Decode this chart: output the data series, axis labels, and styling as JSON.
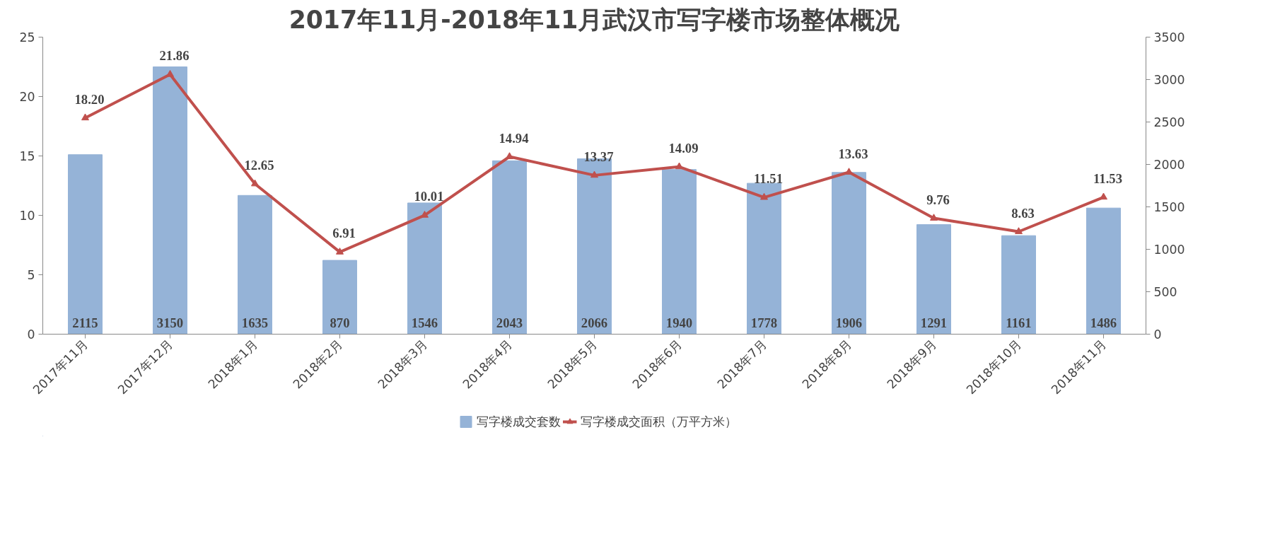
{
  "chart_data": {
    "type": "bar",
    "title": "2017年11月-2018年11月武汉市写字楼市场整体概况",
    "categories": [
      "2017年11月",
      "2017年12月",
      "2018年1月",
      "2018年2月",
      "2018年3月",
      "2018年4月",
      "2018年5月",
      "2018年6月",
      "2018年7月",
      "2018年8月",
      "2018年9月",
      "2018年10月",
      "2018年11月"
    ],
    "series": [
      {
        "name": "写字楼成交套数",
        "axis": "y2",
        "color": "#95b3d7",
        "values": [
          2115,
          3150,
          1635,
          870,
          1546,
          2043,
          2066,
          1940,
          1778,
          1906,
          1291,
          1161,
          1486
        ],
        "value_labels": [
          "2115",
          "3150",
          "1635",
          "870",
          "1546",
          "2043",
          "2066",
          "1940",
          "1778",
          "1906",
          "1291",
          "1161",
          "1486"
        ]
      },
      {
        "name": "写字楼成交面积（万平方米）",
        "type": "line",
        "axis": "y",
        "color": "#c0504d",
        "marker": "triangle",
        "values": [
          18.2,
          21.86,
          12.65,
          6.91,
          10.01,
          14.94,
          13.37,
          14.09,
          11.51,
          13.63,
          9.76,
          8.63,
          11.53
        ],
        "value_labels": [
          "18.20",
          "21.86",
          "12.65",
          "6.91",
          "10.01",
          "14.94",
          "13.37",
          "14.09",
          "11.51",
          "13.63",
          "9.76",
          "8.63",
          "11.53"
        ]
      }
    ],
    "ylim": [
      0,
      25
    ],
    "yticks": [
      0,
      5,
      10,
      15,
      20,
      25
    ],
    "y2lim": [
      0,
      3500
    ],
    "y2ticks": [
      0,
      500,
      1000,
      1500,
      2000,
      2500,
      3000,
      3500
    ],
    "grid": false,
    "legend": "bottom"
  }
}
